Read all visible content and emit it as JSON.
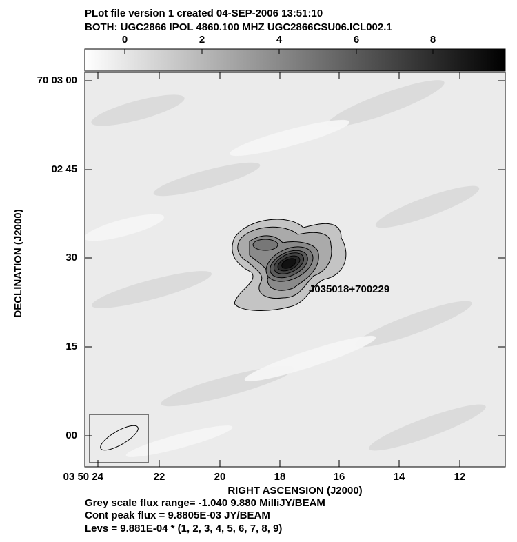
{
  "header": {
    "line1": "PLot file version 1  created 04-SEP-2006 13:51:10",
    "line2": "BOTH: UGC2866  IPOL  4860.100 MHZ  UGC2866CSU06.ICL002.1"
  },
  "colorbar": {
    "ticks": [
      "0",
      "2",
      "4",
      "6",
      "8"
    ]
  },
  "axes": {
    "y_ticks": [
      "70 03 00",
      "02 45",
      "30",
      "15",
      "00"
    ],
    "x_ticks": [
      "03 50 24",
      "22",
      "20",
      "18",
      "16",
      "14",
      "12"
    ],
    "x_label": "RIGHT ASCENSION (J2000)",
    "y_label": "DECLINATION (J2000)"
  },
  "annotation": "J035018+700229",
  "footer": [
    "Grey scale flux range= -1.040 9.880 MilliJY/BEAM",
    "Cont peak flux =  9.8805E-03 JY/BEAM",
    "Levs = 9.881E-04 * (1, 2, 3, 4, 5, 6, 7, 8, 9)"
  ]
}
